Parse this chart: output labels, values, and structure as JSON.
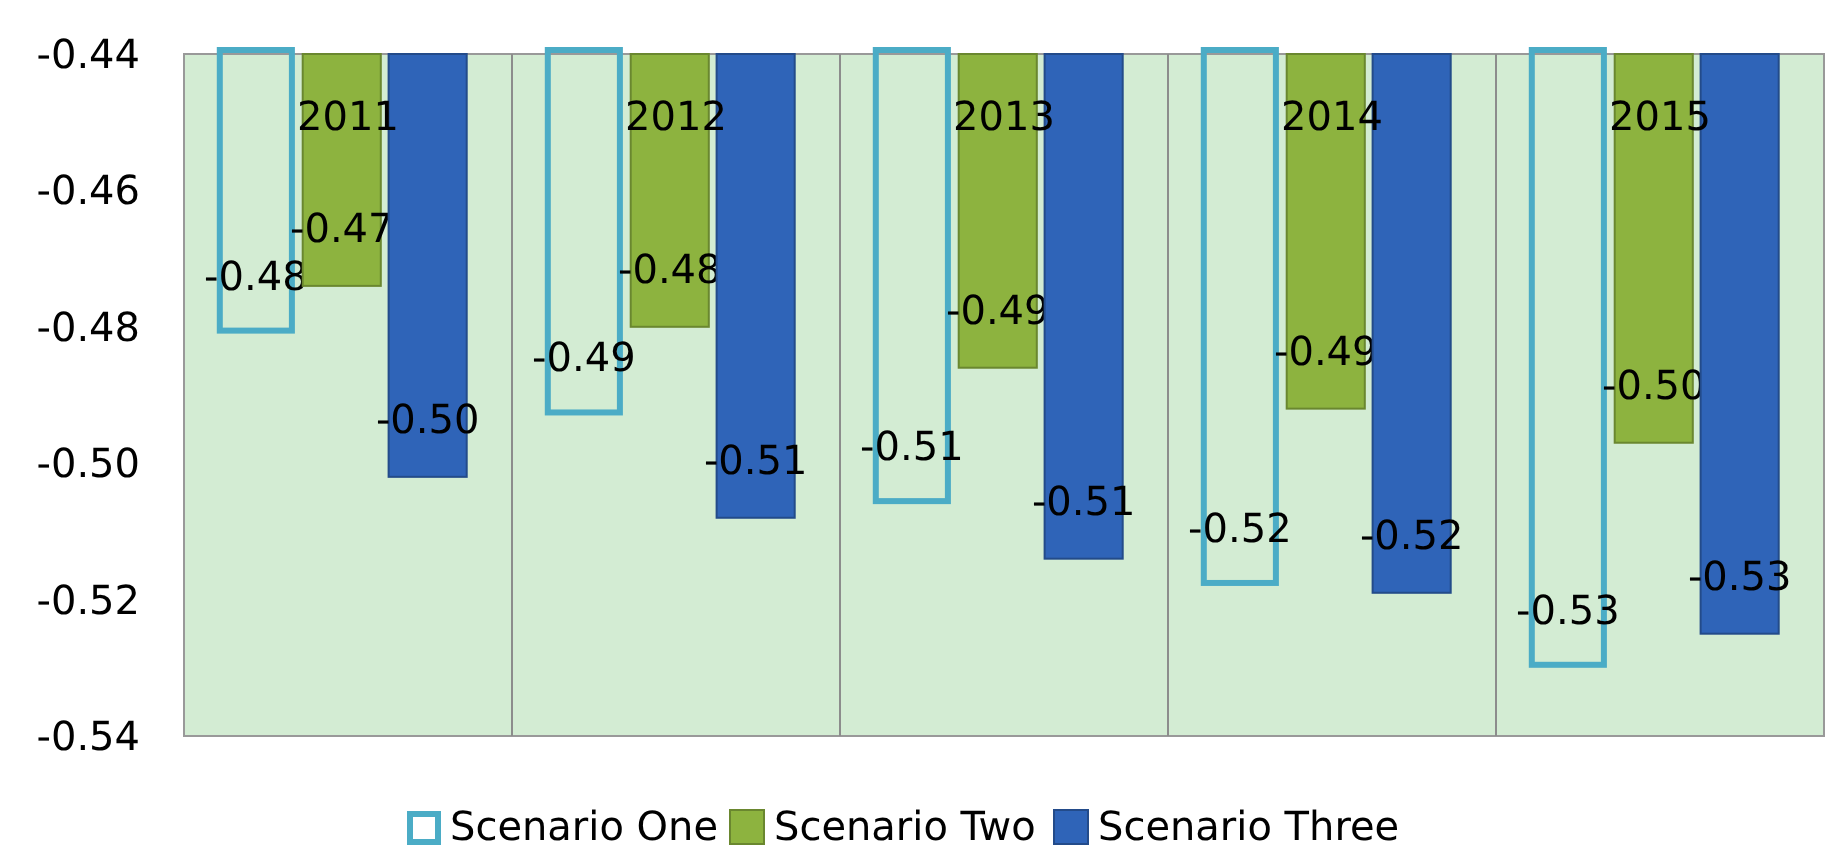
{
  "chart_data": {
    "type": "bar",
    "categories": [
      "2011",
      "2012",
      "2013",
      "2014",
      "2015"
    ],
    "series": [
      {
        "name": "Scenario One",
        "color": "#4bacc6",
        "values": [
          -0.481,
          -0.493,
          -0.506,
          -0.518,
          -0.53
        ],
        "value_labels": [
          "-0.48",
          "-0.49",
          "-0.51",
          "-0.52",
          "-0.53"
        ]
      },
      {
        "name": "Scenario Two",
        "color": "#8db33f",
        "values": [
          -0.474,
          -0.48,
          -0.486,
          -0.492,
          -0.497
        ],
        "value_labels": [
          "-0.47",
          "-0.48",
          "-0.49",
          "-0.49",
          "-0.50"
        ]
      },
      {
        "name": "Scenario Three",
        "color": "#2f64b8",
        "values": [
          -0.502,
          -0.508,
          -0.514,
          -0.519,
          -0.525
        ],
        "value_labels": [
          "-0.50",
          "-0.51",
          "-0.51",
          "-0.52",
          "-0.53"
        ]
      }
    ],
    "ylim": [
      -0.54,
      -0.44
    ],
    "yticks": [
      {
        "value": -0.54,
        "label": "-0.54"
      },
      {
        "value": -0.52,
        "label": "-0.52"
      },
      {
        "value": -0.5,
        "label": "-0.50"
      },
      {
        "value": -0.48,
        "label": "-0.48"
      },
      {
        "value": -0.46,
        "label": "-0.46"
      },
      {
        "value": -0.44,
        "label": "-0.44"
      }
    ],
    "grid": "x",
    "legend": "bottom"
  }
}
